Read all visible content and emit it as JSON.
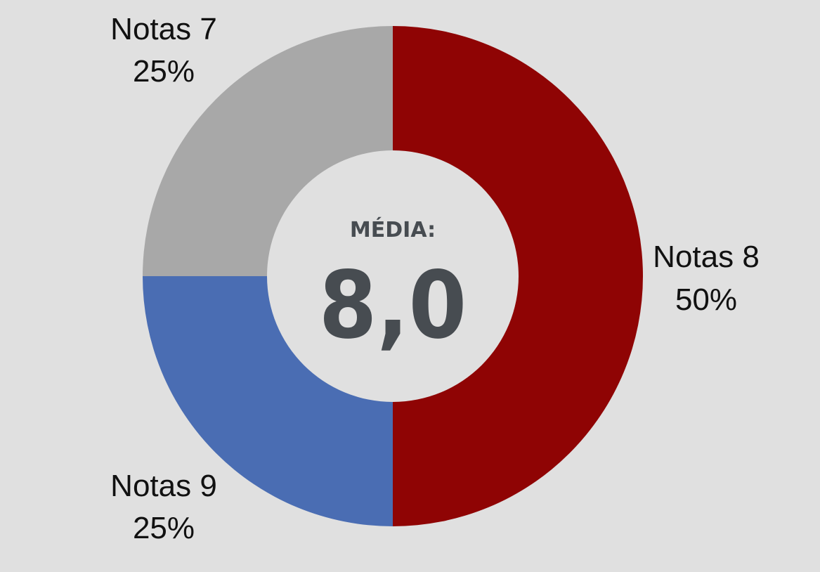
{
  "chart_data": {
    "type": "pie",
    "variant": "donut",
    "slices": [
      {
        "name": "Notas 8",
        "value": 50,
        "value_label": "50%",
        "color": "#8f0404"
      },
      {
        "name": "Notas 9",
        "value": 25,
        "value_label": "25%",
        "color": "#4a6db3"
      },
      {
        "name": "Notas 7",
        "value": 25,
        "value_label": "25%",
        "color": "#a8a8a8"
      }
    ],
    "center_caption": "MÉDIA:",
    "center_value": "8,0",
    "center_color": "#474c51",
    "background": "#e0e0e0",
    "legend": "none"
  }
}
